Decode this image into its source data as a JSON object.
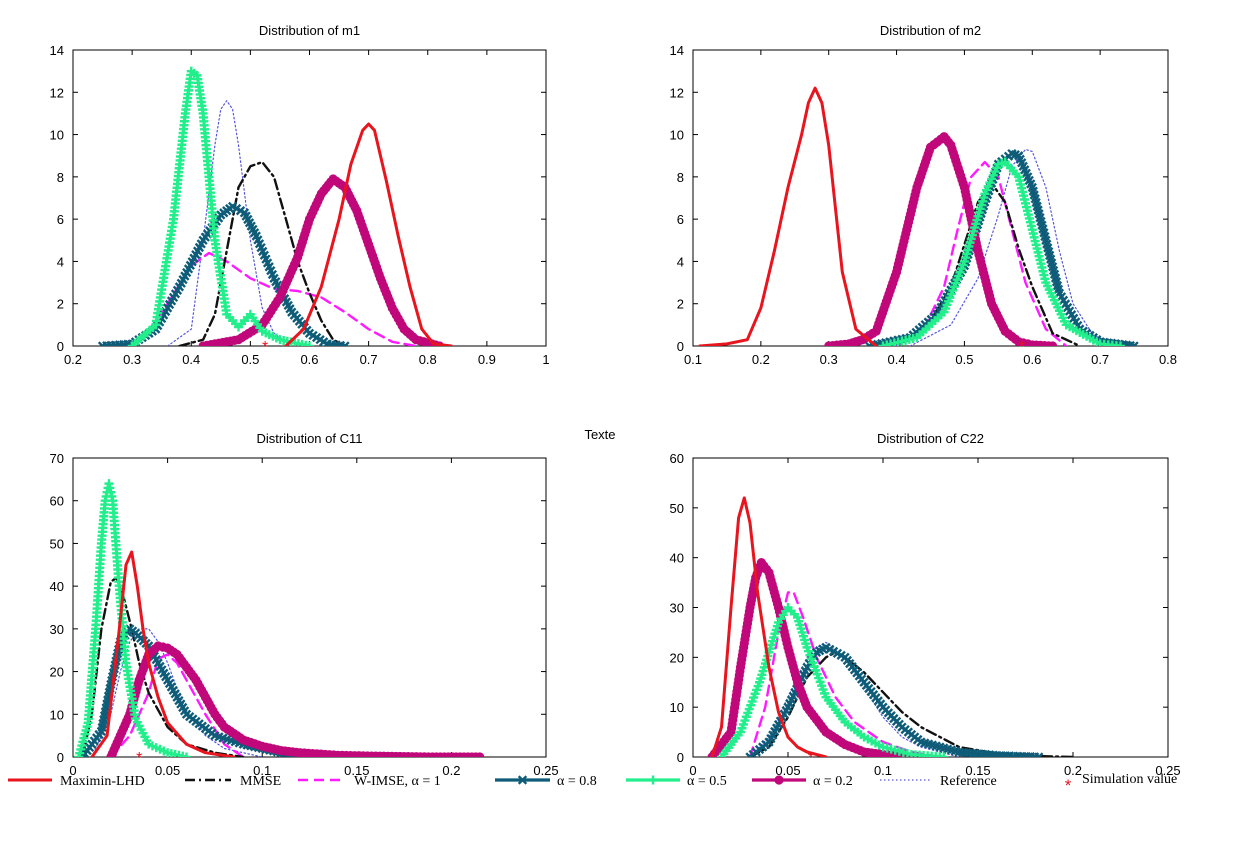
{
  "colors": {
    "maximin": "#e8141e",
    "mmse": "#111111",
    "wimse": "#ff1aff",
    "a08": "#0e5c78",
    "a05": "#22ee8c",
    "a02": "#c0087a",
    "reference": "#5555dd",
    "simulation": "#e8141e"
  },
  "overlay_text": "Texte",
  "legend": {
    "maximin": "Maximin-LHD",
    "mmse": "MMSE",
    "wimse": "W-IMSE, α = 1",
    "a08": "α = 0.8",
    "a05": "α = 0.5",
    "a02": "α = 0.2",
    "reference": "Reference",
    "simulation": "Simulation value"
  },
  "chart_data": [
    {
      "type": "line",
      "title": "Distribution of m1",
      "xlabel": "",
      "ylabel": "",
      "xlim": [
        0.2,
        1
      ],
      "ylim": [
        0,
        14
      ],
      "xticks": [
        "0.2",
        "0.3",
        "0.4",
        "0.5",
        "0.6",
        "0.7",
        "0.8",
        "0.9",
        "1"
      ],
      "yticks": [
        "0",
        "2",
        "4",
        "6",
        "8",
        "10",
        "12",
        "14"
      ],
      "simulation_value": 0.525,
      "series": [
        {
          "key": "maximin",
          "x": [
            0.56,
            0.59,
            0.62,
            0.65,
            0.67,
            0.69,
            0.7,
            0.71,
            0.73,
            0.75,
            0.77,
            0.79,
            0.81,
            0.84
          ],
          "y": [
            0,
            0.8,
            2.8,
            6.0,
            8.6,
            10.2,
            10.5,
            10.2,
            7.8,
            5.2,
            2.8,
            0.8,
            0.1,
            0
          ]
        },
        {
          "key": "mmse",
          "x": [
            0.38,
            0.42,
            0.44,
            0.46,
            0.48,
            0.5,
            0.52,
            0.54,
            0.56,
            0.58,
            0.6,
            0.62,
            0.64,
            0.66
          ],
          "y": [
            0,
            0.3,
            1.5,
            4.5,
            7.5,
            8.5,
            8.7,
            8.0,
            6.0,
            4.0,
            2.5,
            1.2,
            0.3,
            0
          ]
        },
        {
          "key": "wimse",
          "x": [
            0.28,
            0.32,
            0.36,
            0.4,
            0.43,
            0.46,
            0.5,
            0.54,
            0.58,
            0.62,
            0.66,
            0.7,
            0.74,
            0.78
          ],
          "y": [
            0,
            0.4,
            2.0,
            3.8,
            4.4,
            4.0,
            3.2,
            2.7,
            2.6,
            2.3,
            1.6,
            0.8,
            0.2,
            0
          ]
        },
        {
          "key": "a08",
          "x": [
            0.25,
            0.3,
            0.34,
            0.38,
            0.42,
            0.45,
            0.47,
            0.49,
            0.51,
            0.54,
            0.57,
            0.6,
            0.63,
            0.66
          ],
          "y": [
            0,
            0.1,
            0.8,
            2.8,
            5.0,
            6.2,
            6.6,
            6.3,
            5.2,
            3.2,
            1.6,
            0.6,
            0.1,
            0
          ]
        },
        {
          "key": "a05",
          "x": [
            0.3,
            0.34,
            0.37,
            0.39,
            0.4,
            0.41,
            0.42,
            0.44,
            0.46,
            0.48,
            0.5,
            0.52,
            0.55,
            0.6
          ],
          "y": [
            0,
            1.0,
            6.0,
            11.0,
            13.0,
            12.8,
            11.0,
            5.0,
            1.5,
            0.9,
            1.5,
            0.7,
            0.3,
            0
          ]
        },
        {
          "key": "a02",
          "x": [
            0.42,
            0.48,
            0.52,
            0.55,
            0.58,
            0.6,
            0.62,
            0.64,
            0.66,
            0.68,
            0.7,
            0.72,
            0.74,
            0.76,
            0.78,
            0.82
          ],
          "y": [
            0,
            0.3,
            1.0,
            2.3,
            4.2,
            6.0,
            7.2,
            7.9,
            7.5,
            6.4,
            4.8,
            3.2,
            1.8,
            0.8,
            0.3,
            0
          ]
        },
        {
          "key": "reference",
          "x": [
            0.36,
            0.4,
            0.42,
            0.44,
            0.45,
            0.46,
            0.47,
            0.48,
            0.5,
            0.52,
            0.54,
            0.56,
            0.58
          ],
          "y": [
            0,
            0.8,
            5.0,
            9.5,
            11.2,
            11.6,
            11.2,
            9.5,
            5.0,
            1.8,
            0.6,
            0.2,
            0
          ]
        }
      ]
    },
    {
      "type": "line",
      "title": "Distribution of m2",
      "xlabel": "",
      "ylabel": "",
      "xlim": [
        0.1,
        0.8
      ],
      "ylim": [
        0,
        14
      ],
      "xticks": [
        "0.1",
        "0.2",
        "0.3",
        "0.4",
        "0.5",
        "0.6",
        "0.7",
        "0.8"
      ],
      "yticks": [
        "0",
        "2",
        "4",
        "6",
        "8",
        "10",
        "12",
        "14"
      ],
      "simulation_value": 0.585,
      "series": [
        {
          "key": "maximin",
          "x": [
            0.11,
            0.15,
            0.18,
            0.2,
            0.22,
            0.24,
            0.26,
            0.27,
            0.28,
            0.29,
            0.3,
            0.31,
            0.32,
            0.34,
            0.37
          ],
          "y": [
            0,
            0.1,
            0.3,
            1.8,
            4.5,
            7.5,
            10.0,
            11.5,
            12.2,
            11.5,
            9.5,
            6.5,
            3.5,
            0.8,
            0
          ]
        },
        {
          "key": "mmse",
          "x": [
            0.38,
            0.42,
            0.45,
            0.48,
            0.5,
            0.52,
            0.54,
            0.56,
            0.58,
            0.6,
            0.63,
            0.67
          ],
          "y": [
            0,
            0.4,
            1.2,
            2.8,
            4.8,
            6.8,
            7.7,
            6.8,
            4.6,
            2.8,
            0.6,
            0
          ]
        },
        {
          "key": "wimse",
          "x": [
            0.4,
            0.44,
            0.47,
            0.49,
            0.51,
            0.53,
            0.55,
            0.57,
            0.59,
            0.62,
            0.65
          ],
          "y": [
            0,
            0.8,
            2.8,
            5.5,
            8.0,
            8.7,
            8.0,
            5.5,
            3.0,
            0.8,
            0
          ]
        },
        {
          "key": "a08",
          "x": [
            0.36,
            0.42,
            0.46,
            0.5,
            0.53,
            0.55,
            0.57,
            0.58,
            0.6,
            0.62,
            0.64,
            0.67,
            0.7,
            0.75
          ],
          "y": [
            0,
            0.4,
            1.5,
            3.8,
            6.8,
            8.6,
            9.1,
            9.0,
            7.5,
            5.0,
            2.5,
            0.8,
            0.2,
            0
          ]
        },
        {
          "key": "a05",
          "x": [
            0.38,
            0.43,
            0.47,
            0.5,
            0.53,
            0.55,
            0.56,
            0.58,
            0.6,
            0.62,
            0.65,
            0.7,
            0.73
          ],
          "y": [
            0,
            0.4,
            1.6,
            4.0,
            7.2,
            8.6,
            8.7,
            8.0,
            5.5,
            3.0,
            1.0,
            0.1,
            0
          ]
        },
        {
          "key": "a02",
          "x": [
            0.3,
            0.33,
            0.35,
            0.37,
            0.4,
            0.43,
            0.45,
            0.47,
            0.48,
            0.5,
            0.52,
            0.54,
            0.56,
            0.58,
            0.6,
            0.63
          ],
          "y": [
            0,
            0.1,
            0.3,
            0.7,
            3.5,
            7.5,
            9.4,
            9.9,
            9.5,
            7.5,
            4.5,
            2.0,
            0.7,
            0.2,
            0.05,
            0
          ]
        },
        {
          "key": "reference",
          "x": [
            0.42,
            0.48,
            0.52,
            0.55,
            0.57,
            0.59,
            0.6,
            0.62,
            0.64,
            0.66,
            0.69,
            0.73
          ],
          "y": [
            0,
            1.0,
            3.2,
            6.2,
            8.5,
            9.3,
            9.2,
            7.5,
            4.5,
            2.0,
            0.5,
            0
          ]
        }
      ]
    },
    {
      "type": "line",
      "title": "Distribution of C11",
      "xlabel": "",
      "ylabel": "",
      "xlim": [
        0,
        0.25
      ],
      "ylim": [
        0,
        70
      ],
      "xticks": [
        "0",
        "0.05",
        "0.1",
        "0.15",
        "0.2",
        "0.25"
      ],
      "yticks": [
        "0",
        "10",
        "20",
        "30",
        "40",
        "50",
        "60",
        "70"
      ],
      "simulation_value": 0.035,
      "series": [
        {
          "key": "maximin",
          "x": [
            0.01,
            0.018,
            0.024,
            0.028,
            0.031,
            0.034,
            0.037,
            0.04,
            0.045,
            0.05,
            0.06,
            0.07,
            0.085
          ],
          "y": [
            0,
            5,
            28,
            45,
            48,
            40,
            30,
            22,
            14,
            8,
            3,
            1,
            0
          ]
        },
        {
          "key": "mmse",
          "x": [
            0.005,
            0.01,
            0.015,
            0.02,
            0.023,
            0.027,
            0.031,
            0.035,
            0.04,
            0.05,
            0.06,
            0.075,
            0.09
          ],
          "y": [
            0,
            10,
            30,
            41,
            42,
            37,
            30,
            22,
            15,
            7,
            3,
            1,
            0
          ]
        },
        {
          "key": "wimse",
          "x": [
            0.02,
            0.03,
            0.04,
            0.045,
            0.05,
            0.055,
            0.06,
            0.07,
            0.08,
            0.09
          ],
          "y": [
            0,
            5,
            15,
            23,
            24,
            22,
            18,
            10,
            3,
            0
          ]
        },
        {
          "key": "a08",
          "x": [
            0.005,
            0.015,
            0.02,
            0.025,
            0.03,
            0.033,
            0.04,
            0.05,
            0.06,
            0.075,
            0.09,
            0.11,
            0.14,
            0.18
          ],
          "y": [
            0,
            6,
            17,
            27,
            30,
            29,
            26,
            18,
            10,
            5,
            3,
            1,
            0.3,
            0
          ]
        },
        {
          "key": "a05",
          "x": [
            0.003,
            0.008,
            0.012,
            0.015,
            0.017,
            0.019,
            0.021,
            0.024,
            0.028,
            0.033,
            0.04,
            0.05,
            0.06
          ],
          "y": [
            0,
            8,
            30,
            50,
            60,
            64,
            60,
            42,
            22,
            9,
            3,
            1,
            0
          ]
        },
        {
          "key": "a02",
          "x": [
            0.02,
            0.03,
            0.035,
            0.04,
            0.045,
            0.05,
            0.055,
            0.06,
            0.065,
            0.07,
            0.075,
            0.08,
            0.09,
            0.1,
            0.11,
            0.12,
            0.14,
            0.16,
            0.19,
            0.215
          ],
          "y": [
            0,
            10,
            18,
            24,
            26,
            25.5,
            24,
            21,
            18,
            14,
            10,
            7,
            4,
            2.5,
            1.5,
            1,
            0.4,
            0.2,
            0,
            0
          ]
        },
        {
          "key": "reference",
          "x": [
            0.01,
            0.02,
            0.025,
            0.03,
            0.035,
            0.04,
            0.045,
            0.05,
            0.055,
            0.06,
            0.07,
            0.08,
            0.1
          ],
          "y": [
            0,
            10,
            20,
            27,
            30,
            30,
            27,
            22,
            16,
            11,
            5,
            2,
            0
          ]
        }
      ]
    },
    {
      "type": "line",
      "title": "Distribution of C22",
      "xlabel": "",
      "ylabel": "",
      "xlim": [
        0,
        0.25
      ],
      "ylim": [
        0,
        60
      ],
      "xticks": [
        "0",
        "0.05",
        "0.1",
        "0.15",
        "0.2",
        "0.25"
      ],
      "yticks": [
        "0",
        "10",
        "20",
        "30",
        "40",
        "50",
        "60"
      ],
      "simulation_value": 0.062,
      "series": [
        {
          "key": "maximin",
          "x": [
            0.01,
            0.015,
            0.02,
            0.024,
            0.027,
            0.03,
            0.034,
            0.04,
            0.045,
            0.05,
            0.055,
            0.06,
            0.07
          ],
          "y": [
            0,
            6,
            30,
            48,
            52,
            47,
            33,
            18,
            9,
            4,
            2,
            1,
            0
          ]
        },
        {
          "key": "mmse",
          "x": [
            0.03,
            0.04,
            0.05,
            0.06,
            0.07,
            0.075,
            0.08,
            0.09,
            0.1,
            0.11,
            0.12,
            0.14,
            0.16,
            0.18,
            0.2
          ],
          "y": [
            0,
            2,
            8,
            16,
            20,
            21,
            20,
            17,
            13,
            9,
            6,
            2,
            0.7,
            0.2,
            0
          ]
        },
        {
          "key": "wimse",
          "x": [
            0.03,
            0.038,
            0.045,
            0.05,
            0.053,
            0.058,
            0.065,
            0.075,
            0.085,
            0.1,
            0.115,
            0.13
          ],
          "y": [
            0,
            10,
            25,
            33,
            33,
            28,
            20,
            12,
            7,
            3,
            1,
            0
          ]
        },
        {
          "key": "a08",
          "x": [
            0.03,
            0.04,
            0.05,
            0.06,
            0.065,
            0.07,
            0.08,
            0.09,
            0.1,
            0.11,
            0.12,
            0.14,
            0.16,
            0.182
          ],
          "y": [
            0,
            3,
            10,
            18,
            21,
            22,
            20,
            15,
            10,
            6,
            3,
            1,
            0.3,
            0
          ]
        },
        {
          "key": "a05",
          "x": [
            0.015,
            0.025,
            0.035,
            0.045,
            0.05,
            0.055,
            0.06,
            0.07,
            0.08,
            0.09,
            0.1,
            0.115,
            0.132
          ],
          "y": [
            0,
            5,
            15,
            27,
            30,
            28,
            22,
            12,
            7,
            4,
            2,
            0.5,
            0
          ]
        },
        {
          "key": "a02",
          "x": [
            0.01,
            0.02,
            0.025,
            0.03,
            0.033,
            0.036,
            0.04,
            0.045,
            0.05,
            0.055,
            0.06,
            0.07,
            0.08,
            0.09,
            0.1,
            0.115
          ],
          "y": [
            0,
            5,
            18,
            30,
            36,
            39,
            37,
            30,
            22,
            15,
            10,
            5,
            2.5,
            1,
            0.5,
            0
          ]
        },
        {
          "key": "reference",
          "x": [
            0.03,
            0.04,
            0.05,
            0.06,
            0.065,
            0.07,
            0.08,
            0.09,
            0.1,
            0.11,
            0.12,
            0.14
          ],
          "y": [
            0,
            4,
            12,
            20,
            22,
            23,
            20,
            14,
            8,
            4,
            2,
            0
          ]
        }
      ]
    }
  ]
}
